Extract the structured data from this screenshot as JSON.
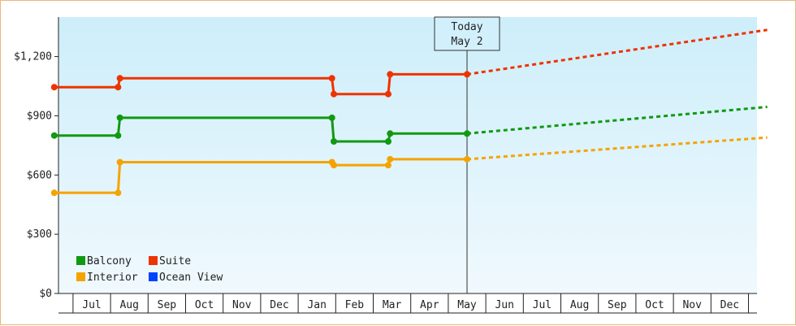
{
  "chart_data": {
    "type": "line",
    "title": "",
    "xlabel": "",
    "ylabel": "",
    "ylim": [
      0,
      1400
    ],
    "y_ticks": [
      {
        "value": 0,
        "label": "$0"
      },
      {
        "value": 300,
        "label": "$300"
      },
      {
        "value": 600,
        "label": "$600"
      },
      {
        "value": 900,
        "label": "$900"
      },
      {
        "value": 1200,
        "label": "$1,200"
      }
    ],
    "x_months": [
      "Jul",
      "Aug",
      "Sep",
      "Oct",
      "Nov",
      "Dec",
      "Jan",
      "Feb",
      "Mar",
      "Apr",
      "May",
      "Jun",
      "Jul",
      "Aug",
      "Sep",
      "Oct",
      "Nov",
      "Dec"
    ],
    "grid": false,
    "legend_position": "bottom-left",
    "today": {
      "line1": "Today",
      "line2": "May 2",
      "x": 10.0
    },
    "series": [
      {
        "name": "Balcony",
        "color": "#119911",
        "history": [
          [
            -1.0,
            800
          ],
          [
            0.7,
            800
          ],
          [
            0.75,
            890
          ],
          [
            6.4,
            890
          ],
          [
            6.45,
            770
          ],
          [
            7.9,
            770
          ],
          [
            7.95,
            810
          ],
          [
            10.0,
            810
          ]
        ],
        "forecast": [
          [
            10.0,
            810
          ],
          [
            18.0,
            945
          ]
        ]
      },
      {
        "name": "Suite",
        "color": "#ee3300",
        "history": [
          [
            -1.0,
            1045
          ],
          [
            0.7,
            1045
          ],
          [
            0.75,
            1090
          ],
          [
            6.4,
            1090
          ],
          [
            6.45,
            1010
          ],
          [
            7.9,
            1010
          ],
          [
            7.95,
            1110
          ],
          [
            10.0,
            1110
          ]
        ],
        "forecast": [
          [
            10.0,
            1110
          ],
          [
            18.0,
            1335
          ]
        ]
      },
      {
        "name": "Interior",
        "color": "#f5a300",
        "history": [
          [
            -1.0,
            510
          ],
          [
            0.7,
            510
          ],
          [
            0.75,
            665
          ],
          [
            6.4,
            665
          ],
          [
            6.45,
            650
          ],
          [
            7.9,
            650
          ],
          [
            7.95,
            680
          ],
          [
            10.0,
            680
          ]
        ],
        "forecast": [
          [
            10.0,
            680
          ],
          [
            18.0,
            790
          ]
        ]
      },
      {
        "name": "Ocean View",
        "color": "#0044ff",
        "history": [],
        "forecast": []
      }
    ]
  }
}
